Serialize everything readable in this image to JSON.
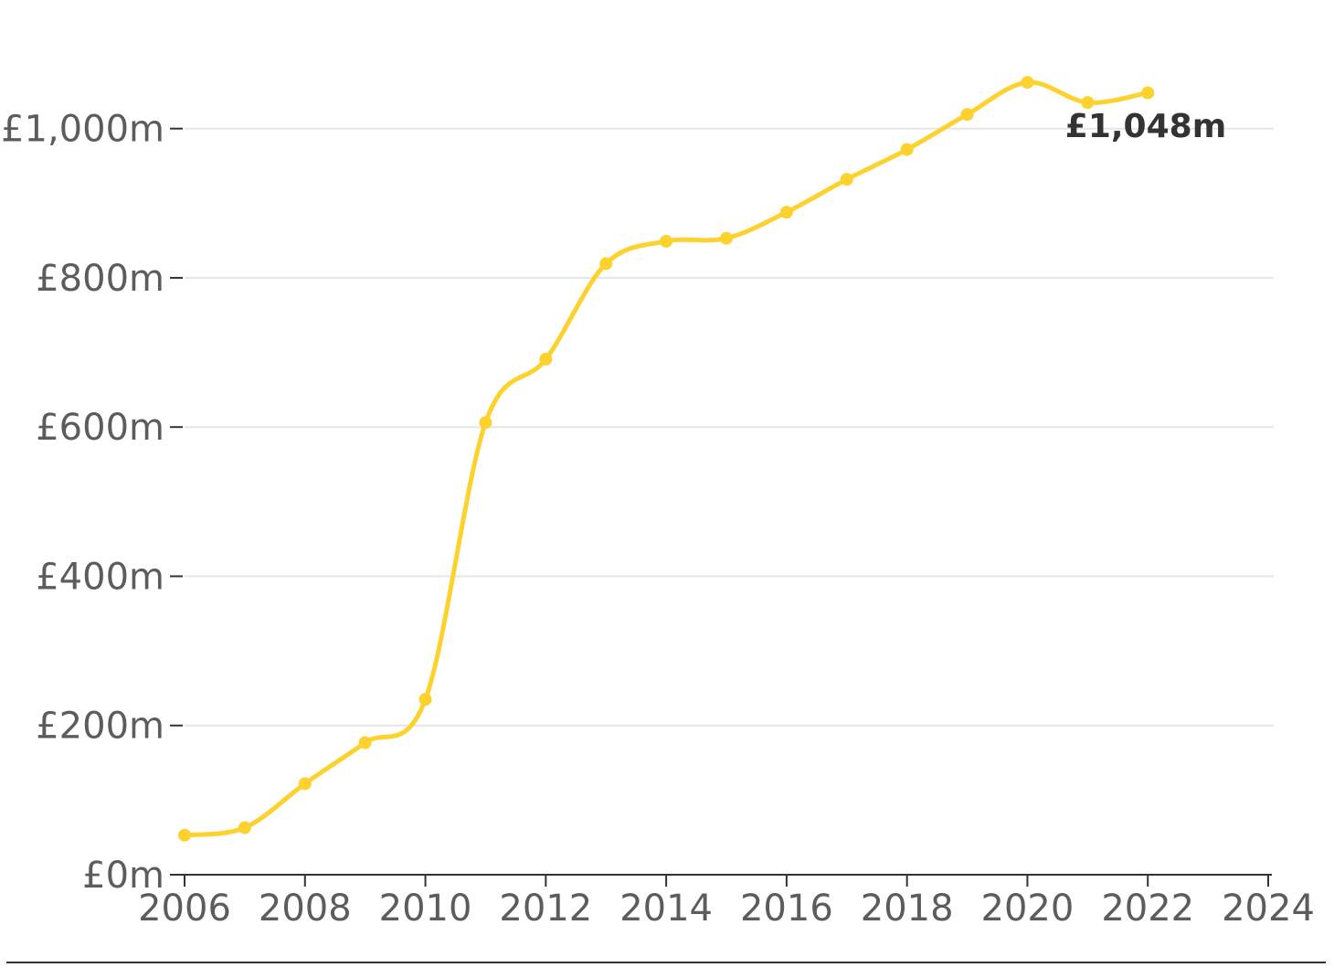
{
  "chart_data": {
    "type": "line",
    "title": "",
    "xlabel": "",
    "ylabel": "",
    "x": [
      2006,
      2007,
      2008,
      2009,
      2010,
      2011,
      2012,
      2013,
      2014,
      2015,
      2016,
      2017,
      2018,
      2019,
      2020,
      2021,
      2022
    ],
    "series": [
      {
        "values": [
          53,
          63,
          122,
          177,
          235,
          606,
          691,
          819,
          849,
          853,
          888,
          932,
          972,
          1019,
          1062,
          1035,
          1048
        ],
        "color": "#fdd22f"
      }
    ],
    "xlim": [
      2006,
      2024
    ],
    "ylim": [
      0,
      1100
    ],
    "x_ticks": [
      2006,
      2008,
      2010,
      2012,
      2014,
      2016,
      2018,
      2020,
      2022,
      2024
    ],
    "x_tick_labels": [
      "2006",
      "2008",
      "2010",
      "2012",
      "2014",
      "2016",
      "2018",
      "2020",
      "2022",
      "2024"
    ],
    "y_ticks": [
      0,
      200,
      400,
      600,
      800,
      1000
    ],
    "y_tick_labels": [
      "£0m",
      "£200m",
      "£400m",
      "£600m",
      "£800m",
      "£1,000m"
    ],
    "grid": true,
    "legend": "none",
    "end_label": "£1,048m"
  }
}
